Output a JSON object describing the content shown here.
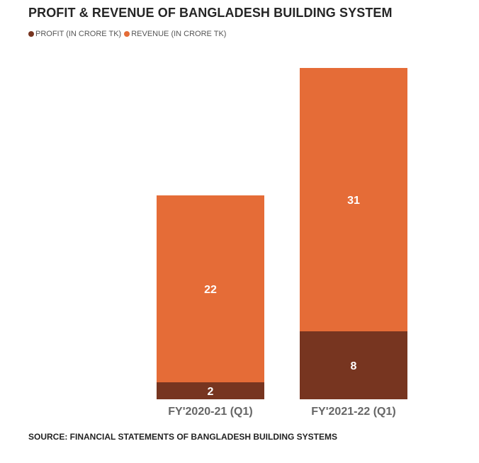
{
  "title": "PROFIT & REVENUE OF BANGLADESH BUILDING SYSTEM",
  "source": "SOURCE: FINANCIAL STATEMENTS OF BANGLADESH BUILDING SYSTEMS",
  "colors": {
    "profit": "#773520",
    "revenue": "#E56C37",
    "label": "#ffffff",
    "axis_text": "#666666"
  },
  "chart_data": {
    "type": "bar",
    "stacked": true,
    "categories": [
      "FY'2020-21 (Q1)",
      "FY'2021-22 (Q1)"
    ],
    "series": [
      {
        "name": "PROFIT (IN CRORE TK)",
        "values": [
          2,
          8
        ]
      },
      {
        "name": "REVENUE (IN CRORE TK)",
        "values": [
          22,
          31
        ]
      }
    ],
    "title": "PROFIT & REVENUE OF BANGLADESH BUILDING SYSTEM",
    "xlabel": "",
    "ylabel": "",
    "ylim": [
      0,
      39
    ],
    "grid": false,
    "legend": "top-left"
  }
}
